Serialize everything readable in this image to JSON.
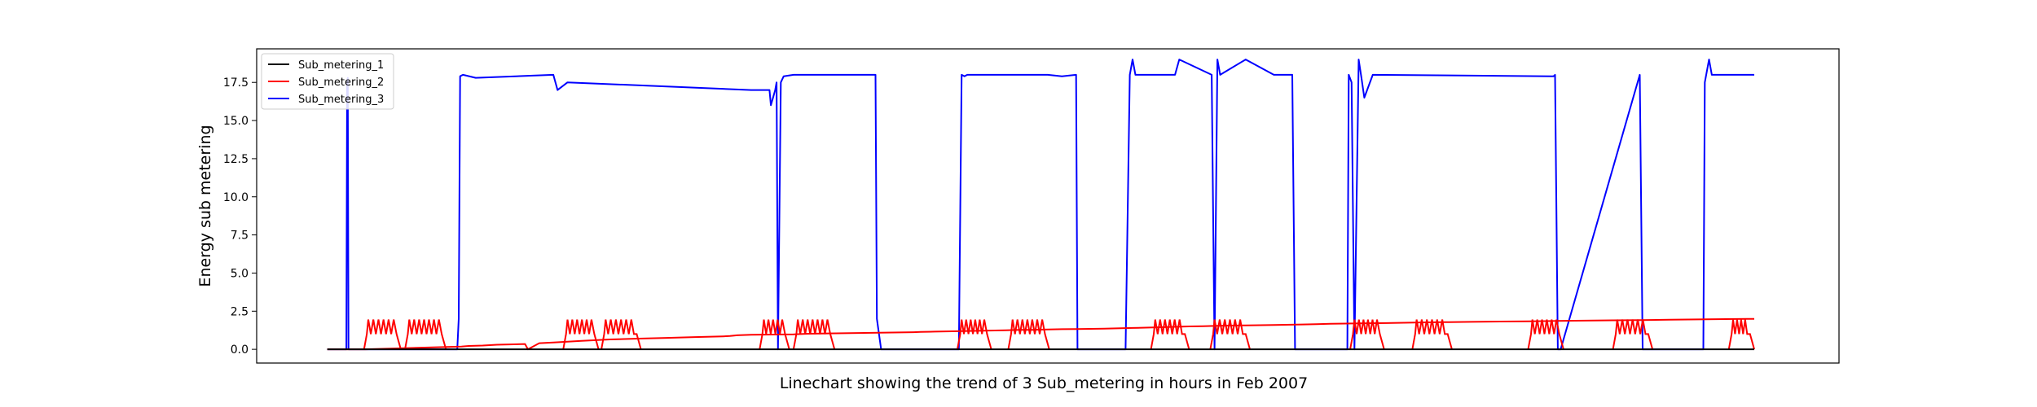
{
  "chart_data": {
    "type": "line",
    "title": "",
    "xlabel": "Linechart showing the trend of 3 Sub_metering in hours in Feb 2007",
    "ylabel": "Energy sub metering",
    "ylim": [
      -0.9,
      19.7
    ],
    "xlim": [
      -5,
      107
    ],
    "x_tick_labels": [],
    "y_ticks": [
      0.0,
      2.5,
      5.0,
      7.5,
      10.0,
      12.5,
      15.0,
      17.5
    ],
    "y_tick_labels": [
      "0.0",
      "2.5",
      "5.0",
      "7.5",
      "10.0",
      "12.5",
      "15.0",
      "17.5"
    ],
    "grid": false,
    "legend_position": "top-left",
    "series": [
      {
        "name": "Sub_metering_1",
        "color": "#000000",
        "x": [
          0,
          101
        ],
        "y": [
          0,
          0
        ]
      },
      {
        "name": "Sub_metering_2",
        "color": "#ff0000",
        "x": [
          0,
          2.6,
          2.7,
          9.5,
          10,
          11,
          12,
          14,
          14.2,
          15,
          16,
          17,
          18,
          19,
          20,
          22,
          24,
          26,
          28,
          28.5,
          28.8,
          29,
          30,
          33,
          33.5,
          34,
          36,
          40,
          41.5,
          42,
          43,
          45,
          48,
          49,
          50,
          51,
          52,
          53,
          55,
          57,
          59,
          61,
          62,
          63,
          65,
          67,
          69,
          70,
          71,
          73,
          75,
          77,
          79,
          81,
          83,
          85,
          87,
          89,
          91,
          93,
          95,
          97,
          99,
          100.5,
          101
        ],
        "y": [
          0,
          0,
          0,
          0.18,
          0.22,
          0.25,
          0.3,
          0.35,
          0,
          0.4,
          0.45,
          0.5,
          0.55,
          0.6,
          0.65,
          0.7,
          0.75,
          0.8,
          0.85,
          0.87,
          0.9,
          0.92,
          0.95,
          0.98,
          1.0,
          1.02,
          1.05,
          1.1,
          1.12,
          1.14,
          1.16,
          1.2,
          1.25,
          1.27,
          1.28,
          1.3,
          1.32,
          1.33,
          1.36,
          1.4,
          1.45,
          1.5,
          1.52,
          1.54,
          1.57,
          1.6,
          1.63,
          1.65,
          1.67,
          1.7,
          1.72,
          1.75,
          1.78,
          1.8,
          1.82,
          1.84,
          1.86,
          1.88,
          1.9,
          1.92,
          1.94,
          1.96,
          1.98,
          1.99,
          2.0
        ],
        "bursts": [
          {
            "x_start": 2.6,
            "x_end": 5.2
          },
          {
            "x_start": 5.5,
            "x_end": 8.4
          },
          {
            "x_start": 16.7,
            "x_end": 19.2
          },
          {
            "x_start": 19.4,
            "x_end": 22.2
          },
          {
            "x_start": 30.6,
            "x_end": 32.7
          },
          {
            "x_start": 33.0,
            "x_end": 35.9
          },
          {
            "x_start": 44.6,
            "x_end": 47.0
          },
          {
            "x_start": 48.2,
            "x_end": 51.1
          },
          {
            "x_start": 58.3,
            "x_end": 61.0
          },
          {
            "x_start": 62.5,
            "x_end": 65.3
          },
          {
            "x_start": 72.4,
            "x_end": 74.8
          },
          {
            "x_start": 76.8,
            "x_end": 79.6
          },
          {
            "x_start": 85.0,
            "x_end": 87.5
          },
          {
            "x_start": 91.0,
            "x_end": 93.8
          },
          {
            "x_start": 99.2,
            "x_end": 101.0
          }
        ]
      },
      {
        "name": "Sub_metering_3",
        "color": "#0000ff",
        "x": [
          0,
          1.3,
          1.35,
          1.4,
          1.45,
          1.5,
          9.2,
          9.3,
          9.4,
          9.6,
          10.5,
          16,
          16.3,
          17,
          30,
          31.3,
          31.4,
          31.7,
          31.8,
          31.9,
          32.1,
          32.3,
          33,
          38.8,
          38.9,
          39.2,
          39.3,
          44.7,
          44.9,
          45.1,
          45.3,
          51,
          52,
          53,
          53.1,
          53.2,
          56.5,
          56.8,
          57,
          57.2,
          60,
          60.3,
          62.6,
          62.8,
          63,
          63.2,
          65,
          67,
          68.3,
          68.5,
          68.7,
          68.8,
          68.9,
          72.2,
          72.3,
          72.5,
          72.7,
          73,
          73.2,
          73.4,
          74,
          86.8,
          86.9,
          87.1,
          87.3,
          92.9,
          93.1,
          93.3,
          93.5,
          97.4,
          97.5,
          97.8,
          98.0,
          101
        ],
        "y": [
          0,
          0,
          0,
          17.5,
          17.8,
          0,
          0,
          2.0,
          17.9,
          18.0,
          17.8,
          18.0,
          17.0,
          17.5,
          17.0,
          17.0,
          16.0,
          17.0,
          17.5,
          0,
          17.5,
          17.9,
          18.0,
          18.0,
          2.0,
          0,
          0,
          0,
          18.0,
          17.9,
          18.0,
          18.0,
          17.9,
          18.0,
          0,
          0,
          0,
          18.0,
          19.0,
          18.0,
          18.0,
          19.0,
          18.0,
          0,
          19.0,
          18.0,
          19.0,
          18.0,
          18.0,
          0,
          0,
          0,
          0,
          0,
          18.0,
          17.5,
          0,
          19.0,
          17.8,
          16.5,
          18.0,
          17.9,
          18.0,
          0,
          0,
          18.0,
          0,
          0,
          0,
          0,
          17.5,
          19.0,
          18.0,
          18.0
        ]
      }
    ]
  }
}
